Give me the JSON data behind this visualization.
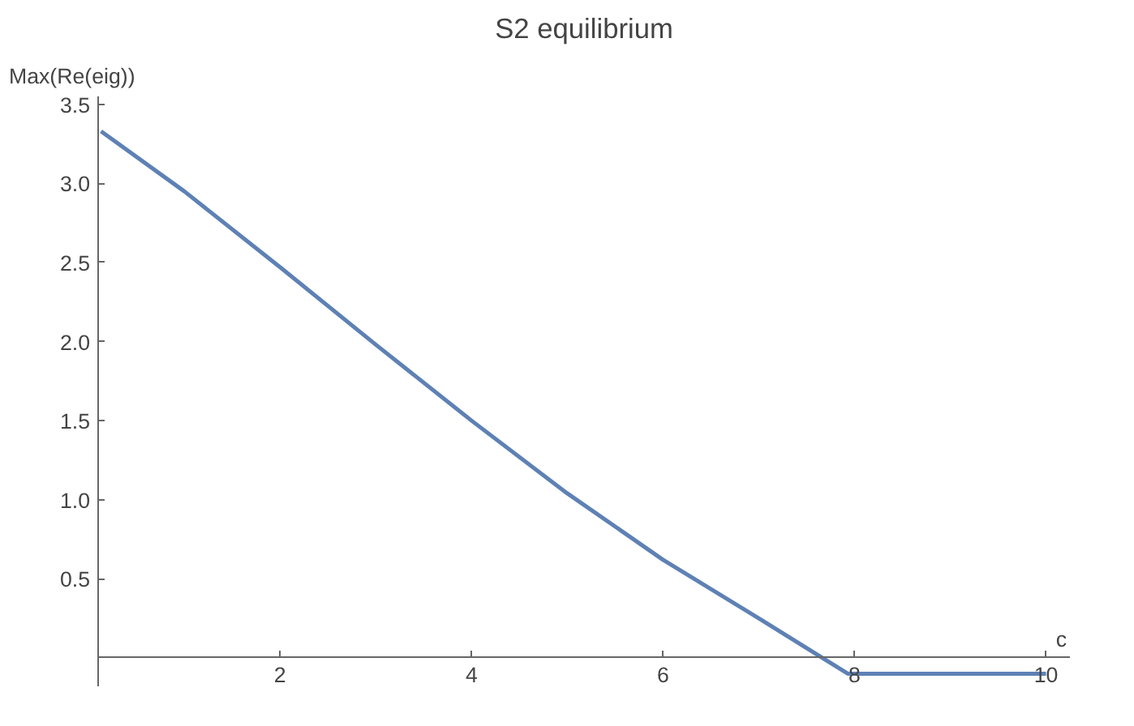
{
  "chart_data": {
    "type": "line",
    "title": "S2 equilibrium",
    "xlabel": "c",
    "ylabel": "Max(Re(eig))",
    "x": [
      0.13,
      1,
      2,
      3,
      4,
      5,
      6,
      7,
      7.93,
      10
    ],
    "series": [
      {
        "color": "#5e81b5",
        "values": [
          3.33,
          2.95,
          2.47,
          1.98,
          1.5,
          1.04,
          0.62,
          0.25,
          -0.1,
          -0.1
        ]
      }
    ],
    "xlim": [
      0.1,
      10.25
    ],
    "ylim": [
      -0.18,
      3.55
    ],
    "xticks": [
      2,
      4,
      6,
      8,
      10
    ],
    "yticks": [
      0.5,
      {
        "value": 1,
        "label": "1.0"
      },
      1.5,
      {
        "value": 2,
        "label": "2.0"
      },
      2.5,
      {
        "value": 3,
        "label": "3.0"
      },
      3.5
    ],
    "grid": false,
    "marker": "none",
    "line_style": "solid"
  }
}
